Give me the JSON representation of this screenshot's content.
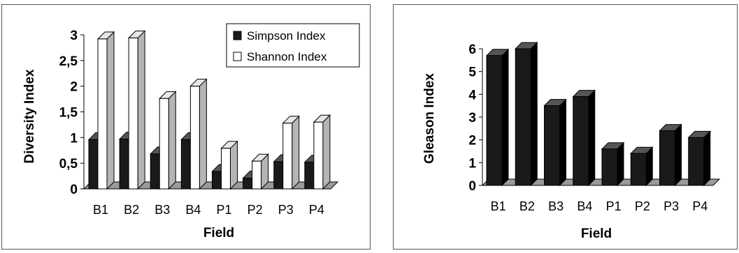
{
  "chart_data": [
    {
      "type": "bar",
      "categories": [
        "B1",
        "B2",
        "B3",
        "B4",
        "P1",
        "P2",
        "P3",
        "P4"
      ],
      "series": [
        {
          "name": "Simpson Index",
          "values": [
            0.96,
            0.97,
            0.68,
            0.96,
            0.34,
            0.21,
            0.53,
            0.52
          ],
          "color": "#1a1a1a"
        },
        {
          "name": "Shannon Index",
          "values": [
            2.92,
            2.94,
            1.76,
            2.0,
            0.79,
            0.54,
            1.28,
            1.3
          ],
          "color": "#ffffff"
        }
      ],
      "xlabel": "Field",
      "ylabel": "Diversity Index",
      "ylim": [
        0,
        3
      ],
      "yticks": [
        "0",
        "0,5",
        "1",
        "1,5",
        "2",
        "2,5",
        "3"
      ],
      "legend": "top-right"
    },
    {
      "type": "bar",
      "categories": [
        "B1",
        "B2",
        "B3",
        "B4",
        "P1",
        "P2",
        "P3",
        "P4"
      ],
      "series": [
        {
          "values": [
            5.7,
            6.0,
            3.5,
            3.9,
            1.6,
            1.4,
            2.4,
            2.1
          ],
          "color": "#1a1a1a"
        }
      ],
      "xlabel": "Field",
      "ylabel": "Gleason Index",
      "ylim": [
        0,
        6
      ],
      "yticks": [
        "0",
        "1",
        "2",
        "3",
        "4",
        "5",
        "6"
      ]
    }
  ]
}
